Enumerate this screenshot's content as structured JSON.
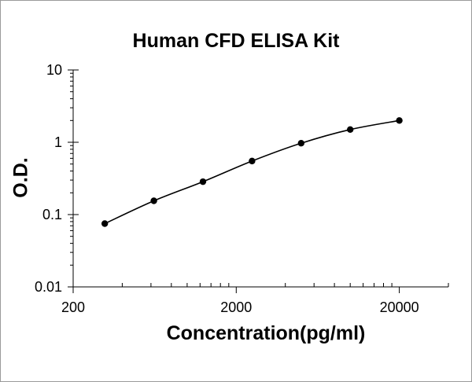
{
  "chart_data": {
    "type": "scatter",
    "title": "Human CFD ELISA Kit",
    "xlabel": "Concentration(pg/ml)",
    "ylabel": "O.D.",
    "x_scale": "log",
    "y_scale": "log",
    "xlim": [
      200,
      40000
    ],
    "ylim": [
      0.01,
      10
    ],
    "x_ticks": [
      "200",
      "2000",
      "20000"
    ],
    "y_ticks": [
      "10",
      "1",
      "0.1",
      "0.01"
    ],
    "grid": false,
    "legend": "none",
    "series": [
      {
        "x": [
          312.5,
          625,
          1250,
          2500,
          5000,
          10000,
          20000
        ],
        "y": [
          0.075,
          0.155,
          0.285,
          0.55,
          0.97,
          1.5,
          2.0
        ],
        "marker": "circle",
        "line": "smooth",
        "color": "#000000"
      }
    ]
  }
}
